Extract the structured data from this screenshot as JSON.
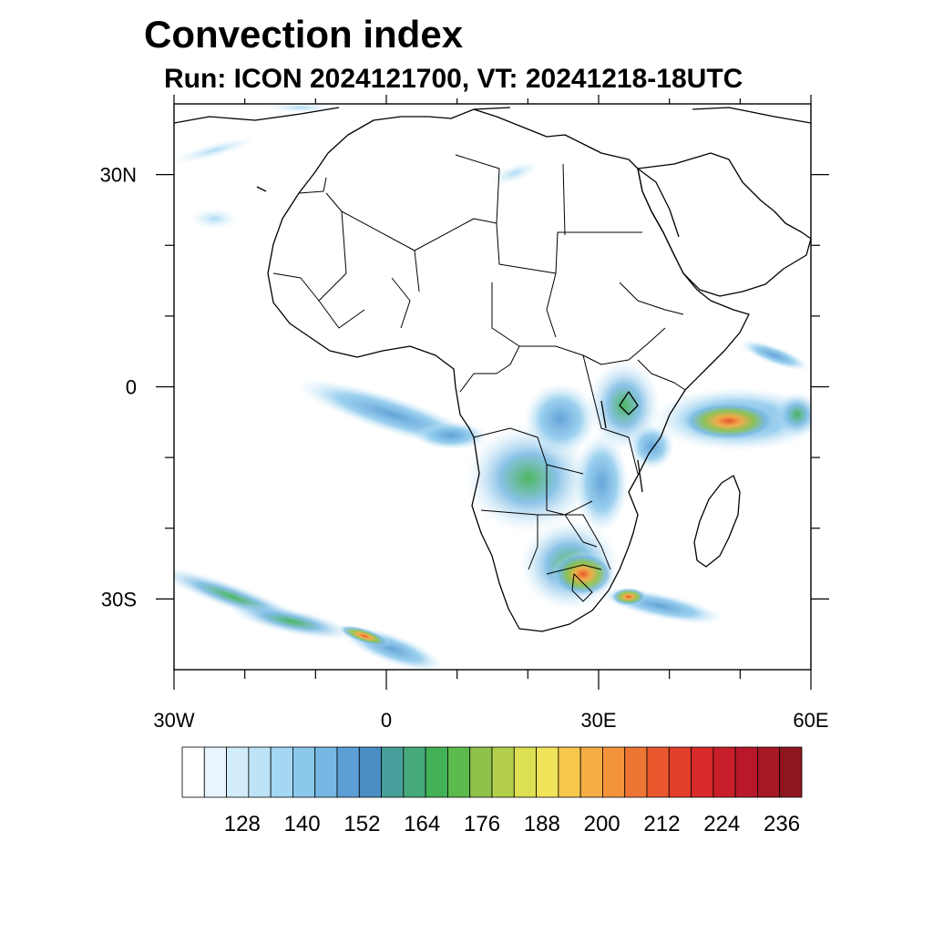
{
  "title": "Convection index",
  "subtitle": "Run: ICON 2024121700,  VT: 20241218-18UTC",
  "map": {
    "lon_range": [
      -30,
      60
    ],
    "lat_range": [
      -40,
      40
    ],
    "lon_ticks": [
      {
        "value": -30,
        "label": "30W"
      },
      {
        "value": 0,
        "label": "0"
      },
      {
        "value": 30,
        "label": "30E"
      },
      {
        "value": 60,
        "label": "60E"
      }
    ],
    "lat_ticks": [
      {
        "value": 30,
        "label": "30N"
      },
      {
        "value": 0,
        "label": "0"
      },
      {
        "value": -30,
        "label": "30S"
      }
    ],
    "minor_lon_ticks": [
      -20,
      -10,
      10,
      20,
      40,
      50
    ],
    "minor_lat_ticks": [
      20,
      10,
      -10,
      -20
    ],
    "ocean_color": "#ffffff",
    "coast_color": "#000000"
  },
  "colorbar": {
    "colors": [
      "#ffffff",
      "#e8f5fc",
      "#d2ecf9",
      "#bde3f6",
      "#a4d8f2",
      "#8ac8ec",
      "#76b8e3",
      "#5c9fd6",
      "#4a8ec4",
      "#479e9a",
      "#46aa7c",
      "#43b257",
      "#5cbb4c",
      "#8ec24a",
      "#b3cf4c",
      "#dce052",
      "#f2e45a",
      "#f8c84e",
      "#f5ad45",
      "#f3943c",
      "#ee7634",
      "#e9582d",
      "#e23e2a",
      "#d92a2a",
      "#c81f2a",
      "#b8182a",
      "#a51824",
      "#8e1620"
    ],
    "labels": [
      {
        "boundary": 3,
        "text": "128"
      },
      {
        "boundary": 6,
        "text": "140"
      },
      {
        "boundary": 9,
        "text": "152"
      },
      {
        "boundary": 12,
        "text": "164"
      },
      {
        "boundary": 15,
        "text": "176"
      },
      {
        "boundary": 18,
        "text": "188"
      },
      {
        "boundary": 21,
        "text": "200"
      },
      {
        "boundary": 24,
        "text": "212"
      },
      {
        "boundary": 27,
        "text": "224"
      },
      {
        "boundary": 30,
        "text": "236"
      }
    ]
  },
  "field_regions": [
    {
      "name": "gulf-of-guinea-band",
      "lon": [
        -7,
        16
      ],
      "lat": [
        -2,
        -9
      ],
      "level": 4
    },
    {
      "name": "angola-zambia-band",
      "lon": [
        12,
        30
      ],
      "lat": [
        -6,
        -20
      ],
      "level": 6
    },
    {
      "name": "east-africa-band",
      "lon": [
        27,
        38
      ],
      "lat": [
        2,
        -10
      ],
      "level": 7
    },
    {
      "name": "indian-ocean-band",
      "lon": [
        38,
        60
      ],
      "lat": [
        0,
        -8
      ],
      "level": 14
    },
    {
      "name": "south-africa-band",
      "lon": [
        20,
        47
      ],
      "lat": [
        -20,
        -34
      ],
      "level": 10
    },
    {
      "name": "southwest-atlantic-band",
      "lon": [
        -30,
        10
      ],
      "lat": [
        -25,
        -40
      ],
      "level": 12
    }
  ]
}
